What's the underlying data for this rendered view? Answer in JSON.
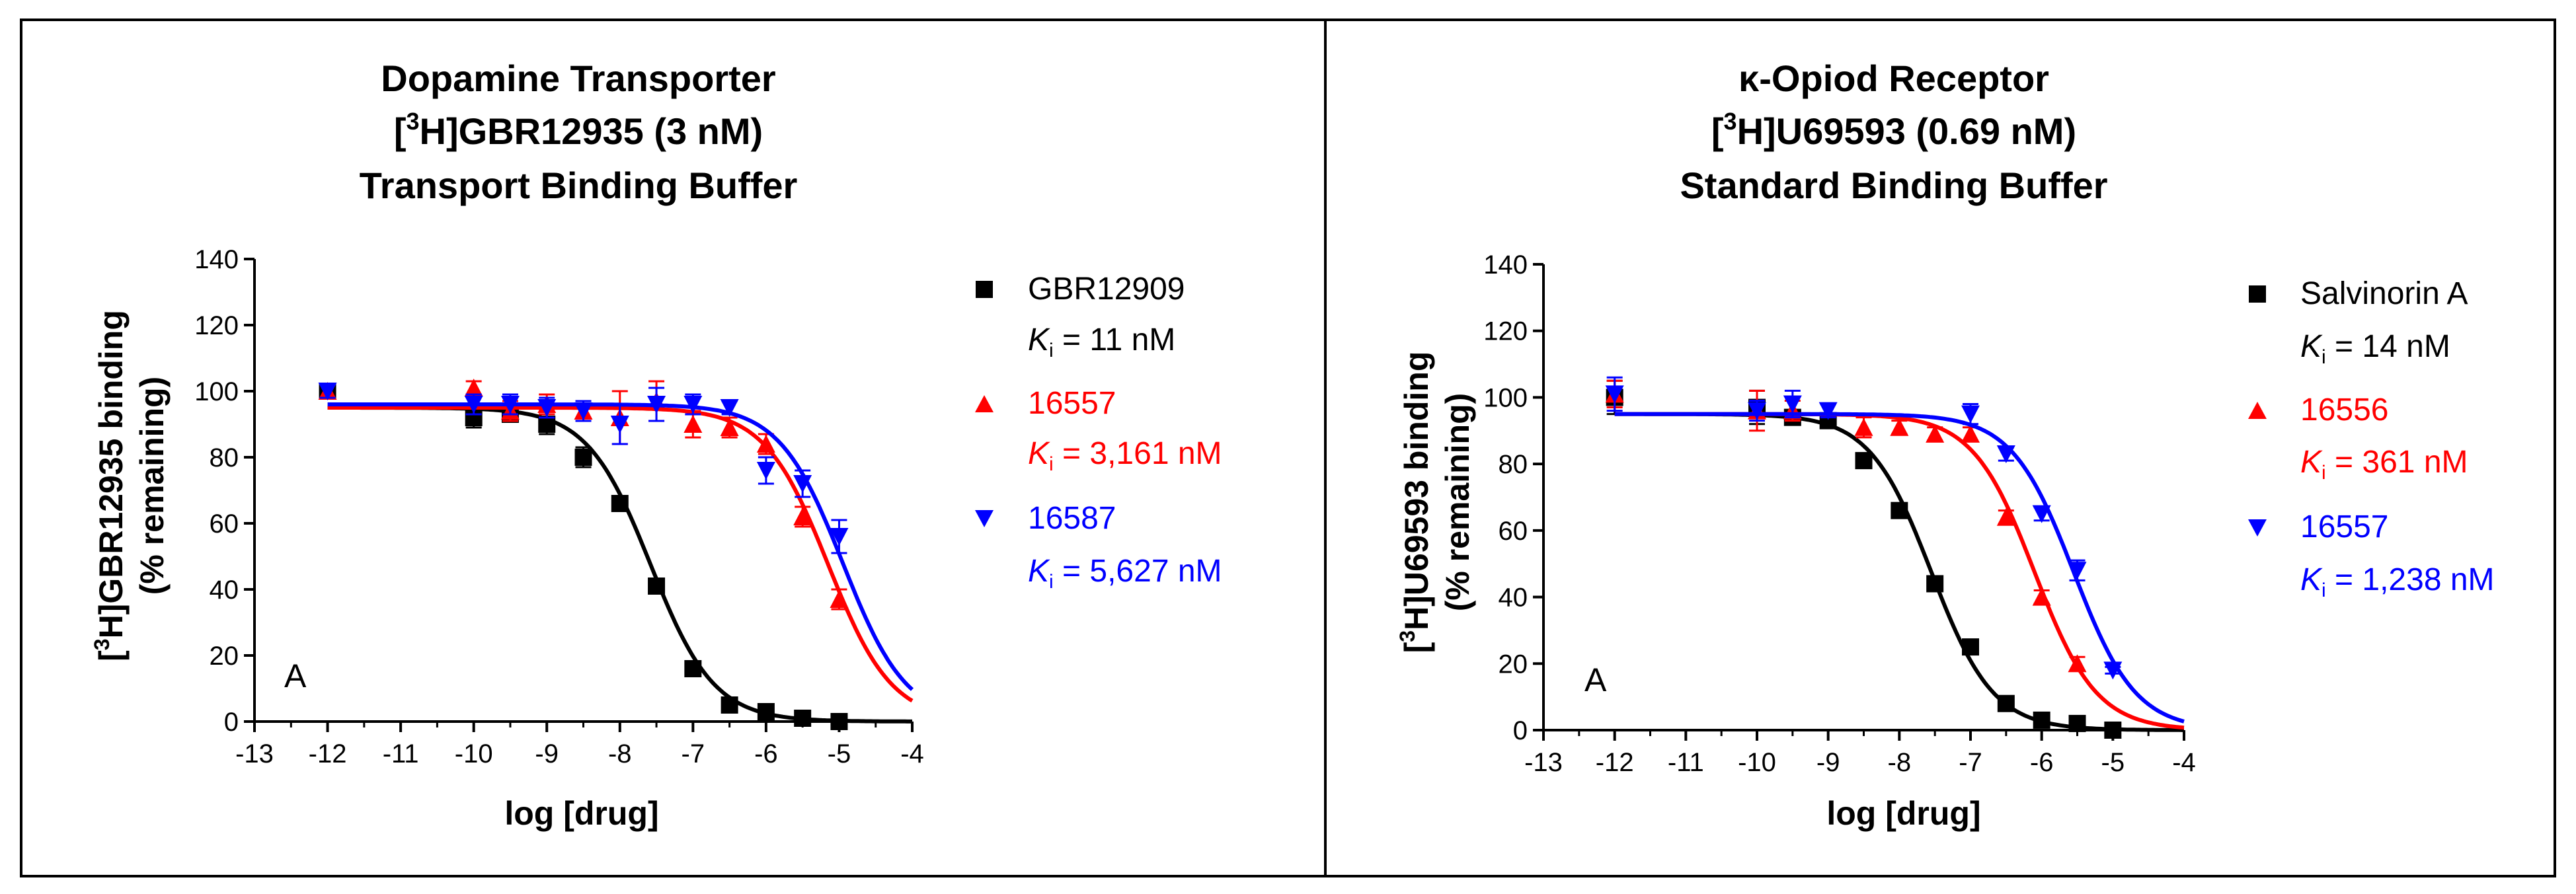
{
  "chart_data": [
    {
      "type": "scatter",
      "title": [
        "Dopamine Transporter",
        "[3H]GBR12935 (3 nM)",
        "Transport Binding Buffer"
      ],
      "title_parts": {
        "line1": "Dopamine Transporter",
        "line2_pre": "[",
        "line2_sup": "3",
        "line2_post": "H]GBR12935 (3 nM)",
        "line3": "Transport Binding Buffer"
      },
      "xlabel": "log [drug]",
      "ylabel_parts": {
        "pre": "[",
        "sup": "3",
        "post": "H]GBR12935 binding",
        "line2": "(% remaining)"
      },
      "xlim": [
        -13,
        -4
      ],
      "ylim": [
        0,
        140
      ],
      "xticks": [
        -13,
        -12,
        -11,
        -10,
        -9,
        -8,
        -7,
        -6,
        -5,
        -4
      ],
      "yticks": [
        0,
        20,
        40,
        60,
        80,
        100,
        120,
        140
      ],
      "panel_letter": "A",
      "legend_position": "right",
      "series": [
        {
          "name": "GBR12909",
          "ki_label": "= 11 nM",
          "color": "#000000",
          "marker": "square",
          "logIC50": -7.58,
          "hill": -1.0,
          "top": 95,
          "bottom": 0,
          "points": [
            {
              "x": -12,
              "y": 100,
              "err": 2
            },
            {
              "x": -10,
              "y": 92,
              "err": 3
            },
            {
              "x": -9.5,
              "y": 93,
              "err": 2
            },
            {
              "x": -9,
              "y": 90,
              "err": 3
            },
            {
              "x": -8.5,
              "y": 80,
              "err": 3
            },
            {
              "x": -8,
              "y": 66,
              "err": 2
            },
            {
              "x": -7.5,
              "y": 41,
              "err": 2
            },
            {
              "x": -7,
              "y": 16,
              "err": 2
            },
            {
              "x": -6.5,
              "y": 5,
              "err": 1
            },
            {
              "x": -6,
              "y": 3,
              "err": 1
            },
            {
              "x": -5.5,
              "y": 1,
              "err": 1
            },
            {
              "x": -5,
              "y": 0,
              "err": 1
            }
          ]
        },
        {
          "name": "16557",
          "ki_label": "= 3,161 nM",
          "color": "#ff0000",
          "marker": "triangle-up",
          "logIC50": -5.15,
          "hill": -1.0,
          "top": 95,
          "bottom": 0,
          "points": [
            {
              "x": -12,
              "y": 100,
              "err": 2
            },
            {
              "x": -10,
              "y": 101,
              "err": 2
            },
            {
              "x": -9.5,
              "y": 94,
              "err": 3
            },
            {
              "x": -9,
              "y": 96,
              "err": 3
            },
            {
              "x": -8.5,
              "y": 94,
              "err": 3
            },
            {
              "x": -8,
              "y": 92,
              "err": 8
            },
            {
              "x": -7.5,
              "y": 97,
              "err": 6
            },
            {
              "x": -7,
              "y": 90,
              "err": 4
            },
            {
              "x": -6.5,
              "y": 89,
              "err": 3
            },
            {
              "x": -6,
              "y": 84,
              "err": 3
            },
            {
              "x": -5.5,
              "y": 62,
              "err": 3
            },
            {
              "x": -5,
              "y": 37,
              "err": 3
            }
          ]
        },
        {
          "name": "16587",
          "ki_label": "= 5,627 nM",
          "color": "#0000ff",
          "marker": "triangle-down",
          "logIC50": -4.95,
          "hill": -1.0,
          "top": 96,
          "bottom": 0,
          "points": [
            {
              "x": -12,
              "y": 100,
              "err": 2
            },
            {
              "x": -10,
              "y": 96,
              "err": 3
            },
            {
              "x": -9.5,
              "y": 96,
              "err": 3
            },
            {
              "x": -9,
              "y": 95,
              "err": 3
            },
            {
              "x": -8.5,
              "y": 94,
              "err": 3
            },
            {
              "x": -8,
              "y": 90,
              "err": 6
            },
            {
              "x": -7.5,
              "y": 96,
              "err": 5
            },
            {
              "x": -7,
              "y": 96,
              "err": 3
            },
            {
              "x": -6.5,
              "y": 95,
              "err": 2
            },
            {
              "x": -6,
              "y": 76,
              "err": 4
            },
            {
              "x": -5.5,
              "y": 72,
              "err": 4
            },
            {
              "x": -5,
              "y": 56,
              "err": 5
            }
          ]
        }
      ]
    },
    {
      "type": "scatter",
      "title": [
        "κ-Opiod Receptor",
        "[3H]U69593 (0.69 nM)",
        "Standard Binding Buffer"
      ],
      "title_parts": {
        "line1": "κ-Opiod Receptor",
        "line2_pre": "[",
        "line2_sup": "3",
        "line2_post": "H]U69593 (0.69 nM)",
        "line3": "Standard Binding Buffer"
      },
      "xlabel": "log [drug]",
      "ylabel_parts": {
        "pre": "[",
        "sup": "3",
        "post": "H]U69593 binding",
        "line2": "(% remaining)"
      },
      "xlim": [
        -13,
        -4
      ],
      "ylim": [
        0,
        140
      ],
      "xticks": [
        -13,
        -12,
        -11,
        -10,
        -9,
        -8,
        -7,
        -6,
        -5,
        -4
      ],
      "yticks": [
        0,
        20,
        40,
        60,
        80,
        100,
        120,
        140
      ],
      "panel_letter": "A",
      "legend_position": "right",
      "series": [
        {
          "name": "Salvinorin A",
          "ki_label": "= 14 nM",
          "color": "#000000",
          "marker": "square",
          "logIC50": -7.55,
          "hill": -1.0,
          "top": 95,
          "bottom": 0,
          "points": [
            {
              "x": -12,
              "y": 100,
              "err": 5
            },
            {
              "x": -10,
              "y": 97,
              "err": 5
            },
            {
              "x": -9.5,
              "y": 94,
              "err": 2
            },
            {
              "x": -9,
              "y": 93,
              "err": 2
            },
            {
              "x": -8.5,
              "y": 81,
              "err": 2
            },
            {
              "x": -8,
              "y": 66,
              "err": 2
            },
            {
              "x": -7.5,
              "y": 44,
              "err": 2
            },
            {
              "x": -7,
              "y": 25,
              "err": 2
            },
            {
              "x": -6.5,
              "y": 8,
              "err": 1
            },
            {
              "x": -6,
              "y": 3,
              "err": 1
            },
            {
              "x": -5.5,
              "y": 2,
              "err": 1
            },
            {
              "x": -5,
              "y": 0,
              "err": 1
            }
          ]
        },
        {
          "name": "16556",
          "ki_label": "= 361 nM",
          "color": "#ff0000",
          "marker": "triangle-up",
          "logIC50": -6.1,
          "hill": -1.0,
          "top": 95,
          "bottom": 0,
          "points": [
            {
              "x": -12,
              "y": 101,
              "err": 4
            },
            {
              "x": -10,
              "y": 96,
              "err": 6
            },
            {
              "x": -9.5,
              "y": 96,
              "err": 3
            },
            {
              "x": -8.5,
              "y": 91,
              "err": 3
            },
            {
              "x": -8,
              "y": 91,
              "err": 2
            },
            {
              "x": -7.5,
              "y": 89,
              "err": 2
            },
            {
              "x": -7,
              "y": 89,
              "err": 2
            },
            {
              "x": -6.5,
              "y": 64,
              "err": 2
            },
            {
              "x": -6,
              "y": 40,
              "err": 2
            },
            {
              "x": -5.5,
              "y": 20,
              "err": 2
            }
          ]
        },
        {
          "name": "16557",
          "ki_label": "= 1,238 nM",
          "color": "#0000ff",
          "marker": "triangle-down",
          "logIC50": -5.55,
          "hill": -1.0,
          "top": 95,
          "bottom": 0,
          "points": [
            {
              "x": -12,
              "y": 101,
              "err": 5
            },
            {
              "x": -10,
              "y": 96,
              "err": 3
            },
            {
              "x": -9.5,
              "y": 98,
              "err": 4
            },
            {
              "x": -9,
              "y": 96,
              "err": 2
            },
            {
              "x": -7,
              "y": 95,
              "err": 3
            },
            {
              "x": -6.5,
              "y": 83,
              "err": 2
            },
            {
              "x": -6,
              "y": 65,
              "err": 2
            },
            {
              "x": -5.5,
              "y": 48,
              "err": 3
            },
            {
              "x": -5,
              "y": 18,
              "err": 1
            }
          ]
        }
      ]
    }
  ]
}
